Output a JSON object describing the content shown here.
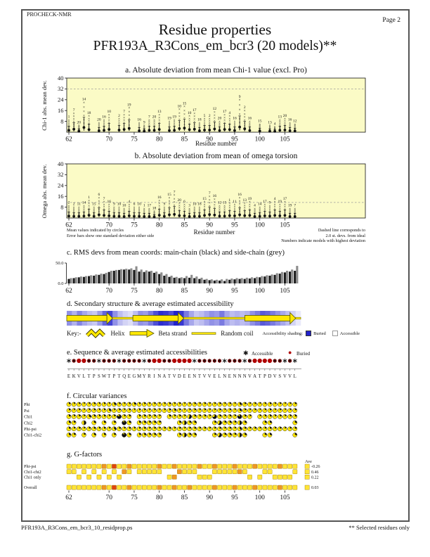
{
  "page": {
    "app": "PROCHECK-NMR",
    "page_label": "Page  2",
    "title": "Residue properties",
    "subtitle": "PFR193A_R3Cons_em_bcr3 (20 models)**",
    "footer_file": "PFR193A_R3Cons_em_bcr3_10_residprop.ps",
    "footer_note": "** Selected residues only"
  },
  "panel_b_notes": {
    "left1": "Mean values indicated by circles",
    "left2": "Error bars show one standard deviation either side",
    "xlabel": "Residue number",
    "right1": "Dashed line corresponds to",
    "right2": "2.0 st. devs. from ideal",
    "right3": "Numbers indicate models with highest deviation"
  },
  "panel_d_key": {
    "prefix": "Key:-",
    "helix": "Helix",
    "strand": "Beta strand",
    "coil": "Random coil",
    "shading": "Accessibility shading:",
    "buried": "Buried",
    "accessible": "Accessible"
  },
  "panel_e_legend": {
    "accessible": "Accessible",
    "buried": "Buried"
  },
  "colors": {
    "plot_bg": "#FBFBC6",
    "accent_yellow": "#FFE800",
    "buried_blue": "#2222CC",
    "buried_red": "#B00000",
    "g_yellow": "#FFE435",
    "g_orange": "#F09722",
    "g_red": "#E0440C",
    "bar_main": "#1c1c1c",
    "bar_side": "#8c8c8c",
    "dashed": "#999999"
  },
  "chart_data": [
    {
      "id": "a",
      "type": "scatter",
      "title": "a. Absolute deviation from mean Chi-1 value (excl. Pro)",
      "ylabel": "Chi-1 abs. mean dev.",
      "xlabel": "Residue number",
      "ylim": [
        0,
        40
      ],
      "yticks": [
        8,
        16,
        24,
        32,
        40
      ],
      "xticks": [
        62,
        70,
        75,
        80,
        85,
        90,
        95,
        100,
        105
      ],
      "dashed_y": 32,
      "points": [
        [
          62,
          9,
          "1"
        ],
        [
          63,
          14,
          "7"
        ],
        [
          64,
          5,
          "20"
        ],
        [
          65,
          22,
          "14"
        ],
        [
          66,
          12,
          "18"
        ],
        [
          68,
          7,
          "20"
        ],
        [
          69,
          9,
          "16"
        ],
        [
          70,
          13,
          "10"
        ],
        [
          72,
          10,
          "2"
        ],
        [
          73,
          13,
          "7"
        ],
        [
          74,
          18,
          "19"
        ],
        [
          76,
          7,
          "16"
        ],
        [
          77,
          5,
          "9"
        ],
        [
          78,
          9,
          "7"
        ],
        [
          79,
          9,
          "20"
        ],
        [
          80,
          13,
          "13"
        ],
        [
          82,
          8,
          "19"
        ],
        [
          83,
          9,
          "19"
        ],
        [
          84,
          17,
          "10"
        ],
        [
          85,
          19,
          "15"
        ],
        [
          86,
          12,
          "10"
        ],
        [
          87,
          14,
          "17"
        ],
        [
          88,
          7,
          "18"
        ],
        [
          89,
          10,
          "5"
        ],
        [
          90,
          10,
          "2"
        ],
        [
          91,
          15,
          "12"
        ],
        [
          92,
          8,
          "20"
        ],
        [
          93,
          13,
          "17"
        ],
        [
          94,
          12,
          "4"
        ],
        [
          95,
          8,
          "16"
        ],
        [
          96,
          24,
          "9"
        ],
        [
          97,
          16,
          "2"
        ],
        [
          98,
          8,
          "16"
        ],
        [
          100,
          6,
          "15"
        ],
        [
          102,
          5,
          "13"
        ],
        [
          103,
          4,
          "4"
        ],
        [
          104,
          9,
          "13"
        ],
        [
          105,
          10,
          "20"
        ],
        [
          106,
          7,
          "16"
        ],
        [
          107,
          6,
          "12"
        ]
      ]
    },
    {
      "id": "b",
      "type": "scatter",
      "title": "b. Absolute deviation from mean of omega torsion",
      "ylabel": "Omega abs. mean dev.",
      "xlabel": "Residue number",
      "ylim": [
        0,
        40
      ],
      "yticks": [
        8,
        16,
        24,
        32,
        40
      ],
      "xticks": [
        62,
        70,
        75,
        80,
        85,
        90,
        95,
        100,
        105
      ],
      "dashed_y": 11.5,
      "points": [
        [
          62,
          9,
          "2"
        ],
        [
          63,
          8,
          "2"
        ],
        [
          64,
          8,
          "11"
        ],
        [
          65,
          9,
          "14"
        ],
        [
          66,
          13,
          "1"
        ],
        [
          67,
          8,
          "15"
        ],
        [
          68,
          15,
          "6"
        ],
        [
          69,
          12,
          "7"
        ],
        [
          70,
          10,
          "16"
        ],
        [
          71,
          8,
          "9"
        ],
        [
          72,
          8,
          "10"
        ],
        [
          73,
          7,
          "10"
        ],
        [
          74,
          10,
          "4"
        ],
        [
          75,
          8,
          "6"
        ],
        [
          76,
          8,
          "10"
        ],
        [
          77,
          7,
          "1"
        ],
        [
          78,
          7,
          "17"
        ],
        [
          79,
          5,
          "18"
        ],
        [
          80,
          13,
          "16"
        ],
        [
          81,
          8,
          "9"
        ],
        [
          82,
          15,
          "15"
        ],
        [
          83,
          17,
          "7"
        ],
        [
          84,
          11,
          "20"
        ],
        [
          85,
          10,
          "6"
        ],
        [
          86,
          7,
          "3"
        ],
        [
          87,
          8,
          "10"
        ],
        [
          88,
          8,
          "18"
        ],
        [
          89,
          12,
          "15"
        ],
        [
          90,
          16,
          "7"
        ],
        [
          91,
          14,
          "16"
        ],
        [
          92,
          9,
          "12"
        ],
        [
          93,
          9,
          "15"
        ],
        [
          94,
          11,
          "1"
        ],
        [
          95,
          10,
          "11"
        ],
        [
          96,
          15,
          "16"
        ],
        [
          97,
          11,
          "13"
        ],
        [
          98,
          12,
          "19"
        ],
        [
          99,
          7,
          "4"
        ],
        [
          100,
          8,
          "14"
        ],
        [
          101,
          10,
          "17"
        ],
        [
          102,
          9,
          "9"
        ],
        [
          103,
          12,
          "4"
        ],
        [
          104,
          10,
          "19"
        ],
        [
          105,
          12,
          "17"
        ],
        [
          106,
          7,
          "19"
        ],
        [
          107,
          7,
          "7"
        ]
      ]
    },
    {
      "id": "c",
      "type": "bar",
      "title": "c. RMS devs from mean coords: main-chain (black) and side-chain (grey)",
      "ylim": [
        0,
        50
      ],
      "ytick_labels": [
        "0.0",
        "50.0"
      ],
      "xticks": [
        62,
        70,
        75,
        80,
        85,
        90,
        95,
        100,
        105
      ],
      "r_start": 62,
      "series": [
        {
          "name": "main-chain",
          "values": [
            11,
            13,
            15,
            16,
            18,
            19,
            21,
            23,
            28,
            31,
            33,
            34,
            34,
            33,
            29,
            28,
            29,
            26,
            23,
            19,
            16,
            14,
            13,
            13,
            14,
            13,
            11,
            9,
            8,
            7,
            7,
            6,
            9,
            10,
            11,
            11,
            12,
            13,
            15,
            17,
            19,
            21,
            24,
            27,
            29,
            31
          ]
        },
        {
          "name": "side-chain",
          "values": [
            13,
            15,
            17,
            18,
            20,
            22,
            24,
            26,
            31,
            33,
            35,
            36,
            37,
            42,
            34,
            32,
            31,
            29,
            27,
            23,
            19,
            16,
            15,
            18,
            21,
            17,
            14,
            11,
            10,
            9,
            10,
            11,
            12,
            13,
            13,
            14,
            15,
            16,
            18,
            20,
            22,
            25,
            28,
            31,
            34,
            43
          ]
        }
      ]
    },
    {
      "id": "d",
      "type": "structure",
      "title": "d. Secondary structure & average estimated accessibility",
      "r_start": 62,
      "segments": [
        [
          "strand",
          62,
          70
        ],
        [
          "coil",
          71,
          74
        ],
        [
          "strand",
          75,
          84
        ],
        [
          "coil",
          85,
          96
        ],
        [
          "strand",
          97,
          106
        ],
        [
          "coil",
          107,
          107
        ]
      ],
      "accessibility": [
        0.5,
        0.35,
        0.55,
        0.4,
        0.3,
        0.25,
        0.45,
        0.7,
        0.85,
        0.5,
        0.3,
        0.2,
        0.15,
        0.3,
        0.5,
        0.45,
        0.6,
        0.8,
        0.95,
        0.9,
        0.8,
        1.0,
        0.9,
        0.6,
        0.4,
        0.25,
        0.3,
        0.4,
        0.5,
        0.45,
        0.6,
        0.4,
        0.3,
        0.35,
        0.3,
        0.35,
        0.5,
        0.6,
        0.75,
        0.7,
        0.6,
        0.5,
        0.4,
        0.3,
        0.2,
        0.1
      ]
    },
    {
      "id": "e",
      "type": "sequence",
      "title": "e. Sequence & average estimated accessibilities",
      "r_start": 62,
      "sequence": "EKVLTPSWTPTQEGMYRINATVDEENTVVELNENNNVATPDVSVVL",
      "symbols": [
        "a",
        "m",
        "b",
        "b",
        "m",
        "m",
        "a",
        "m",
        "m",
        "m",
        "a",
        "m",
        "m",
        "m",
        "m",
        "a",
        "m",
        "b",
        "b",
        "m",
        "m",
        "b",
        "b",
        "b",
        "b",
        "a",
        "m",
        "m",
        "m",
        "m",
        "m",
        "a",
        "m",
        "m",
        "m",
        "a",
        "m",
        "b",
        "b",
        "b",
        "b",
        "m",
        "m",
        "a",
        "m",
        "a"
      ]
    },
    {
      "id": "f",
      "type": "pies",
      "title": "f. Circular variances",
      "r_start": 62,
      "r_end": 107,
      "rows": [
        {
          "label": "Phi",
          "present": "all",
          "base": 0.12,
          "high": [
            [
              71,
              0.3
            ],
            [
              75,
              0.25
            ],
            [
              96,
              0.3
            ]
          ]
        },
        {
          "label": "Psi",
          "present": "all",
          "base": 0.12,
          "high": [
            [
              70,
              0.3
            ],
            [
              83,
              0.25
            ],
            [
              96,
              0.3
            ]
          ]
        },
        {
          "label": "Chi1",
          "present": [
            62,
            63,
            64,
            65,
            66,
            67,
            68,
            69,
            70,
            71,
            72,
            73,
            74,
            76,
            77,
            78,
            79,
            80,
            82,
            83,
            84,
            85,
            86,
            87,
            88,
            89,
            90,
            91,
            92,
            93,
            94,
            95,
            96,
            97,
            98,
            100,
            101,
            102,
            103,
            104,
            105,
            106,
            107
          ],
          "base": 0.15,
          "high": [
            [
              66,
              0.3
            ],
            [
              72,
              0.85
            ],
            [
              86,
              0.55
            ],
            [
              91,
              0.7
            ],
            [
              96,
              0.85
            ]
          ]
        },
        {
          "label": "Chi2",
          "present": [
            62,
            63,
            65,
            67,
            69,
            71,
            73,
            74,
            76,
            77,
            78,
            79,
            80,
            84,
            85,
            86,
            87,
            91,
            92,
            93,
            94,
            95,
            96,
            97,
            101,
            102,
            107
          ],
          "base": 0.2,
          "high": [
            [
              65,
              0.5
            ],
            [
              73,
              0.9
            ],
            [
              85,
              0.5
            ],
            [
              92,
              0.6
            ],
            [
              96,
              0.5
            ]
          ]
        },
        {
          "label": "Phi-psi",
          "present": "all",
          "base": 0.15,
          "high": [
            [
              71,
              0.35
            ],
            [
              96,
              0.35
            ]
          ]
        },
        {
          "label": "Chi1-chi2",
          "present": [
            62,
            63,
            65,
            67,
            69,
            71,
            73,
            74,
            76,
            77,
            78,
            79,
            80,
            84,
            85,
            86,
            87,
            91,
            92,
            93,
            94,
            95,
            96,
            97,
            101,
            102,
            107
          ],
          "base": 0.2,
          "high": [
            [
              73,
              0.9
            ],
            [
              85,
              0.5
            ],
            [
              92,
              0.6
            ],
            [
              96,
              0.5
            ]
          ]
        }
      ]
    },
    {
      "id": "g",
      "type": "squares",
      "title": "g. G-factors",
      "ave_label": "Ave",
      "r_start": 62,
      "r_end": 107,
      "xticks": [
        62,
        70,
        75,
        80,
        85,
        90,
        95,
        100,
        105
      ],
      "rows": [
        {
          "label": "Phi-psi",
          "present": "all",
          "ave": "-0.26",
          "orange": [
            69,
            74,
            80,
            83,
            88,
            91,
            95,
            99,
            104
          ],
          "red": [
            71
          ]
        },
        {
          "label": "Chi1-chi2",
          "present": [
            62,
            63,
            65,
            67,
            69,
            71,
            73,
            74,
            76,
            77,
            78,
            79,
            80,
            84,
            85,
            86,
            87,
            91,
            92,
            93,
            94,
            95,
            96,
            97,
            101,
            102,
            107
          ],
          "ave": "0.46",
          "orange": [
            73,
            84,
            96
          ],
          "red": []
        },
        {
          "label": "Chi1 only",
          "present": [
            64,
            66,
            68,
            70,
            72,
            82,
            83,
            88,
            89,
            90,
            98,
            100,
            103,
            104,
            105,
            106
          ],
          "ave": "0.22",
          "orange": [
            83
          ],
          "red": []
        }
      ],
      "overall": {
        "label": "Overall",
        "ave": "0.03",
        "orange": [
          69,
          74,
          80,
          83,
          86,
          91,
          95,
          99,
          104
        ],
        "red": [
          71
        ]
      }
    }
  ]
}
